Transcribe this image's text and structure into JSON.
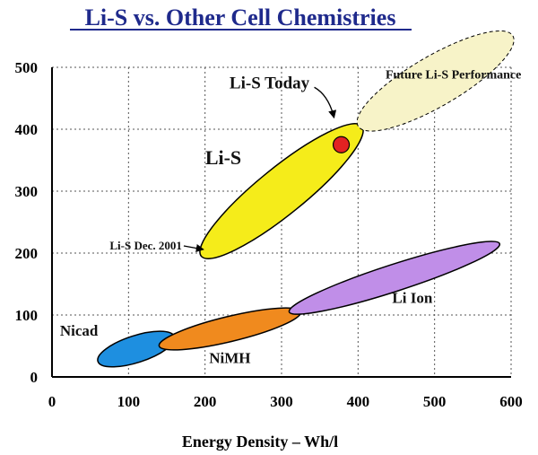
{
  "chart_data": {
    "type": "scatter",
    "title": "Li-S vs. Other Cell Chemistries",
    "xlabel": "Energy Density – Wh/l",
    "ylabel": "",
    "xlim": [
      0,
      600
    ],
    "ylim": [
      0,
      500
    ],
    "x_ticks": [
      "0",
      "100",
      "200",
      "300",
      "400",
      "500",
      "600"
    ],
    "y_ticks": [
      "0",
      "100",
      "200",
      "300",
      "400",
      "500"
    ],
    "grid": "dashed",
    "regions": [
      {
        "label": "Nicad",
        "color": "#1e8fe0",
        "x_range": [
          60,
          160
        ],
        "y_range": [
          25,
          65
        ]
      },
      {
        "label": "NiMH",
        "color": "#f08a1e",
        "x_range": [
          140,
          325
        ],
        "y_range": [
          50,
          105
        ]
      },
      {
        "label": "Li Ion",
        "color": "#c08ee8",
        "x_range": [
          310,
          585
        ],
        "y_range": [
          105,
          215
        ]
      },
      {
        "label": "Li-S",
        "color": "#f5ec1a",
        "x_range": [
          195,
          405
        ],
        "y_range": [
          195,
          405
        ]
      },
      {
        "label": "Future Li-S Performance",
        "color": "#f7f3c8",
        "x_range": [
          400,
          600
        ],
        "y_range": [
          405,
          550
        ]
      }
    ],
    "points": [
      {
        "label": "Li-S Today",
        "x": 378,
        "y": 375,
        "color": "#e32222"
      }
    ],
    "annotations": [
      {
        "label": "Li-S Dec. 2001",
        "x": 205,
        "y": 200
      }
    ]
  }
}
